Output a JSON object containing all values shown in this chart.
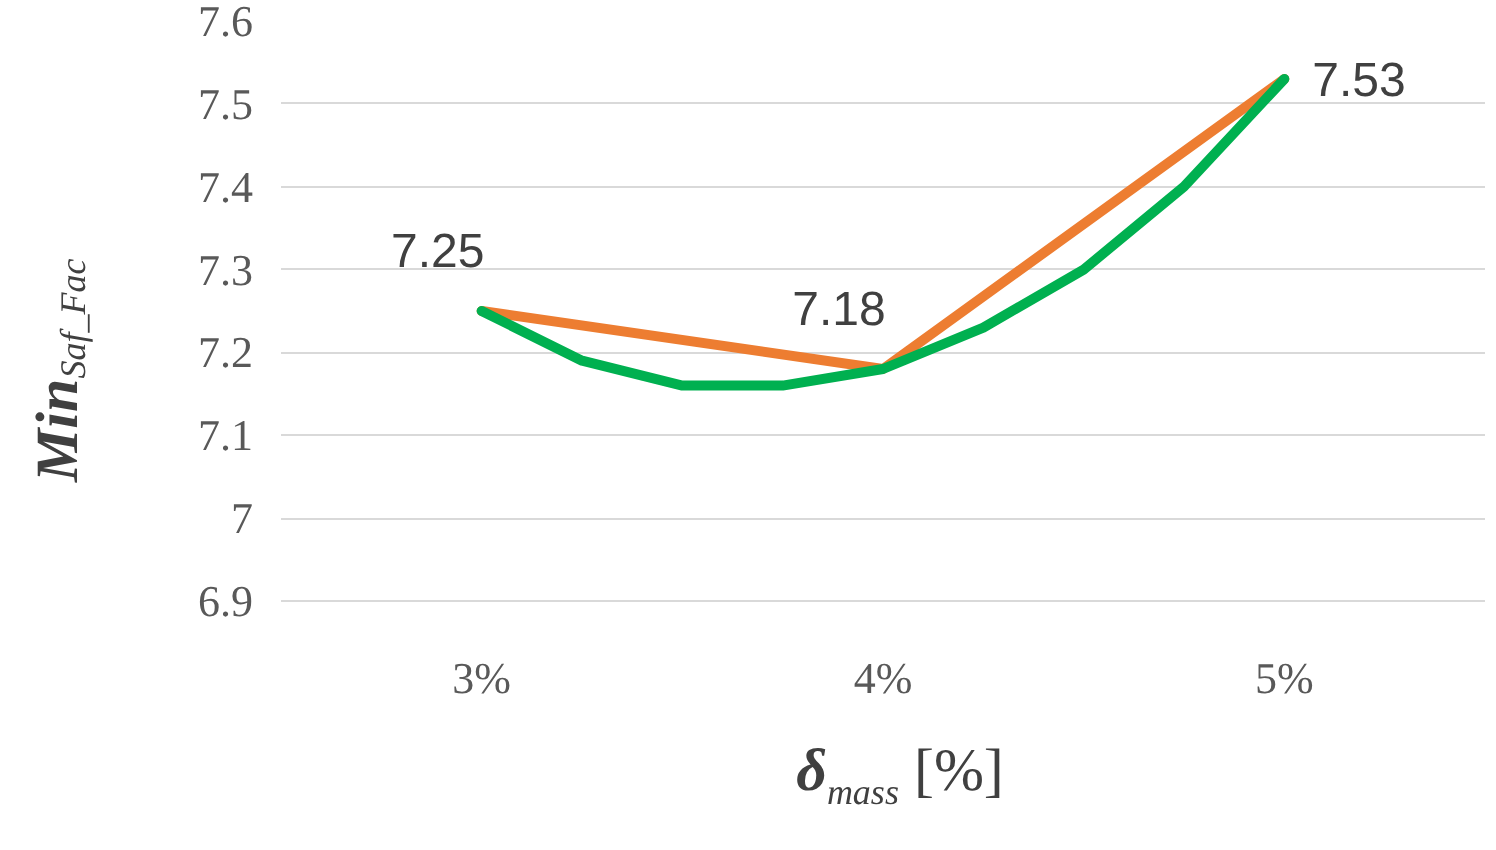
{
  "chart_data": {
    "type": "line",
    "xlabel": "δ$_{mass}$ [%]",
    "ylabel": "Min$_{Saf_Fac}$",
    "x": [
      3,
      4,
      5
    ],
    "xlim": [
      2.5,
      5.5
    ],
    "xticks": [
      {
        "value": 3,
        "label": "3%"
      },
      {
        "value": 4,
        "label": "4%"
      },
      {
        "value": 5,
        "label": "5%"
      }
    ],
    "ylim": [
      6.9,
      7.6
    ],
    "yticks": [
      6.9,
      7,
      7.1,
      7.2,
      7.3,
      7.4,
      7.5,
      7.6
    ],
    "grid": "y",
    "series": [
      {
        "color": "#ed7d31",
        "values": [
          7.25,
          7.18,
          7.53
        ],
        "value_labels": [
          "7.25",
          "7.18",
          "7.53"
        ]
      },
      {
        "type": "line",
        "color": "#00b050",
        "x": [
          3,
          3.25,
          3.5,
          3.75,
          4,
          4.25,
          4.5,
          4.75,
          5
        ],
        "values": [
          7.25,
          7.19,
          7.16,
          7.16,
          7.18,
          7.23,
          7.3,
          7.4,
          7.53
        ]
      }
    ]
  }
}
